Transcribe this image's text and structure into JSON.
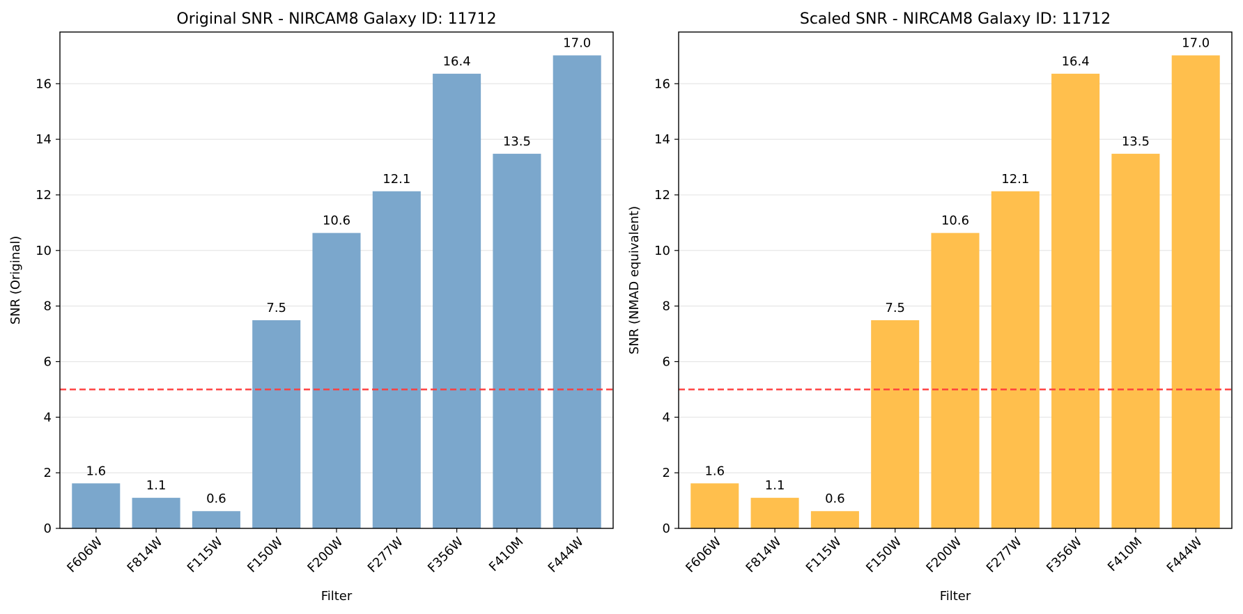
{
  "chart_data": [
    {
      "type": "bar",
      "title": "Original SNR - NIRCAM8 Galaxy ID: 11712",
      "xlabel": "Filter",
      "ylabel": "SNR (Original)",
      "categories": [
        "F606W",
        "F814W",
        "F115W",
        "F150W",
        "F200W",
        "F277W",
        "F356W",
        "F410M",
        "F444W"
      ],
      "values": [
        1.62,
        1.1,
        0.62,
        7.49,
        10.63,
        12.13,
        16.36,
        13.48,
        17.02
      ],
      "value_labels": [
        "1.6",
        "1.1",
        "0.6",
        "7.5",
        "10.6",
        "12.1",
        "16.4",
        "13.5",
        "17.0"
      ],
      "ylim": [
        0,
        17.86
      ],
      "yticks": [
        0,
        2,
        4,
        6,
        8,
        10,
        12,
        14,
        16
      ],
      "ytick_labels": [
        "0",
        "2",
        "4",
        "6",
        "8",
        "10",
        "12",
        "14",
        "16"
      ],
      "threshold": 5,
      "bar_color": "#7ba7cc",
      "threshold_color": "#ff3b3b",
      "grid": "y"
    },
    {
      "type": "bar",
      "title": "Scaled SNR - NIRCAM8 Galaxy ID: 11712",
      "xlabel": "Filter",
      "ylabel": "SNR (NMAD equivalent)",
      "categories": [
        "F606W",
        "F814W",
        "F115W",
        "F150W",
        "F200W",
        "F277W",
        "F356W",
        "F410M",
        "F444W"
      ],
      "values": [
        1.62,
        1.1,
        0.62,
        7.49,
        10.63,
        12.13,
        16.36,
        13.48,
        17.02
      ],
      "value_labels": [
        "1.6",
        "1.1",
        "0.6",
        "7.5",
        "10.6",
        "12.1",
        "16.4",
        "13.5",
        "17.0"
      ],
      "ylim": [
        0,
        17.86
      ],
      "yticks": [
        0,
        2,
        4,
        6,
        8,
        10,
        12,
        14,
        16
      ],
      "ytick_labels": [
        "0",
        "2",
        "4",
        "6",
        "8",
        "10",
        "12",
        "14",
        "16"
      ],
      "threshold": 5,
      "bar_color": "#ffbf4d",
      "threshold_color": "#ff3b3b",
      "grid": "y"
    }
  ]
}
